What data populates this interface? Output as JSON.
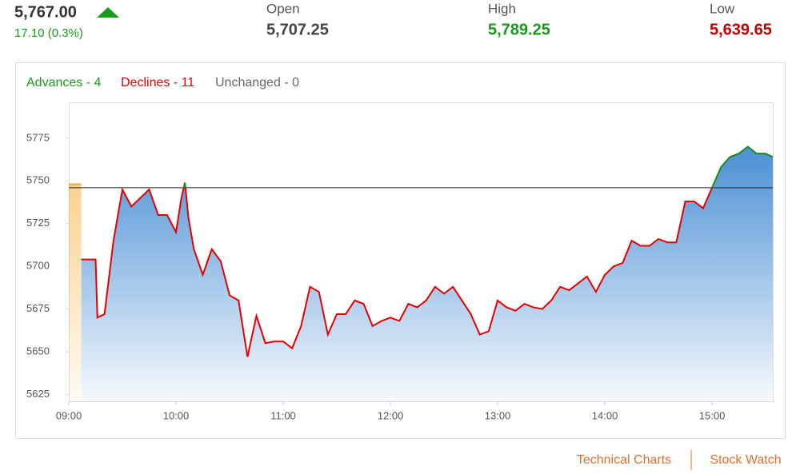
{
  "header": {
    "price": "5,767.00",
    "change": "17.10 (0.3%)",
    "stats": [
      {
        "label": "Open",
        "value": "5,707.25"
      },
      {
        "label": "High",
        "value": "5,789.25"
      },
      {
        "label": "Low",
        "value": "5,639.65"
      }
    ]
  },
  "breadth": [
    "Advances - 4",
    "Declines - 11",
    "Unchanged - 0"
  ],
  "links": [
    "Technical Charts",
    "Stock Watch"
  ],
  "chart_data": {
    "type": "line",
    "x": [
      "09:07",
      "09:10",
      "09:15",
      "09:16",
      "09:20",
      "09:25",
      "09:30",
      "09:35",
      "09:40",
      "09:45",
      "09:50",
      "09:55",
      "10:00",
      "10:03",
      "10:05",
      "10:07",
      "10:10",
      "10:15",
      "10:20",
      "10:25",
      "10:30",
      "10:35",
      "10:40",
      "10:45",
      "10:50",
      "10:55",
      "11:00",
      "11:05",
      "11:10",
      "11:15",
      "11:20",
      "11:25",
      "11:30",
      "11:35",
      "11:40",
      "11:45",
      "11:50",
      "11:55",
      "12:00",
      "12:05",
      "12:10",
      "12:15",
      "12:20",
      "12:25",
      "12:30",
      "12:35",
      "12:40",
      "12:45",
      "12:50",
      "12:55",
      "13:00",
      "13:05",
      "13:10",
      "13:15",
      "13:20",
      "13:25",
      "13:30",
      "13:35",
      "13:40",
      "13:45",
      "13:50",
      "13:55",
      "14:00",
      "14:05",
      "14:10",
      "14:15",
      "14:20",
      "14:25",
      "14:30",
      "14:35",
      "14:40",
      "14:45",
      "14:50",
      "14:55",
      "15:00",
      "15:05",
      "15:10",
      "15:15",
      "15:20",
      "15:25",
      "15:30",
      "15:34"
    ],
    "values": [
      5704,
      5704,
      5704,
      5670,
      5672,
      5715,
      5745,
      5735,
      5740,
      5745,
      5730,
      5730,
      5720,
      5740,
      5749,
      5728,
      5710,
      5695,
      5710,
      5703,
      5683,
      5680,
      5647,
      5671,
      5655,
      5656,
      5656,
      5652,
      5665,
      5688,
      5685,
      5660,
      5672,
      5672,
      5680,
      5678,
      5665,
      5668,
      5670,
      5668,
      5678,
      5676,
      5680,
      5688,
      5684,
      5688,
      5680,
      5672,
      5660,
      5662,
      5680,
      5676,
      5674,
      5678,
      5676,
      5675,
      5680,
      5688,
      5686,
      5690,
      5694,
      5685,
      5695,
      5700,
      5702,
      5715,
      5712,
      5712,
      5716,
      5714,
      5714,
      5738,
      5738,
      5734,
      5746,
      5758,
      5764,
      5766,
      5770,
      5766,
      5766,
      5764
    ],
    "pre_open": {
      "x": [
        "09:00",
        "09:07"
      ],
      "values": [
        5748,
        5748
      ],
      "color": "#f5a623"
    },
    "reference": 5746,
    "colors": {
      "above": "#1a8a1a",
      "below": "#e60000",
      "fill": "#4a8fd4"
    },
    "xlim": [
      "09:00",
      "15:34"
    ],
    "xticks": [
      "09:00",
      "10:00",
      "11:00",
      "12:00",
      "13:00",
      "14:00",
      "15:00"
    ],
    "ylim": [
      5621,
      5796
    ],
    "yticks": [
      5625,
      5650,
      5675,
      5700,
      5725,
      5750,
      5775
    ]
  }
}
